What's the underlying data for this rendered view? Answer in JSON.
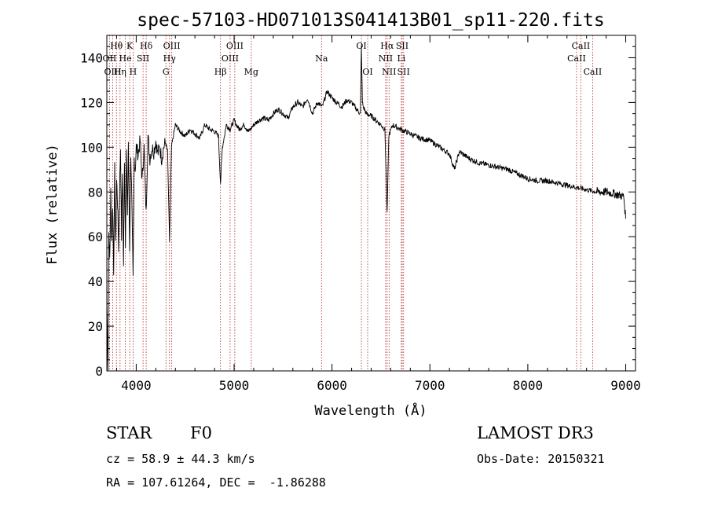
{
  "chart_data": {
    "type": "line",
    "title": "spec-57103-HD071013S041413B01_sp11-220.fits",
    "xlabel": "Wavelength (Å)",
    "ylabel": "Flux (relative)",
    "xlim": [
      3700,
      9100
    ],
    "ylim": [
      0,
      150
    ],
    "xticks": [
      4000,
      5000,
      6000,
      7000,
      8000,
      9000
    ],
    "yticks": [
      0,
      20,
      40,
      60,
      80,
      100,
      120,
      140
    ],
    "line_color": "#000000",
    "marker_color": "#b22222",
    "series": [
      {
        "name": "spectrum",
        "x": [
          3700,
          3712,
          3720,
          3730,
          3740,
          3750,
          3760,
          3770,
          3780,
          3790,
          3800,
          3810,
          3820,
          3830,
          3840,
          3850,
          3860,
          3870,
          3880,
          3890,
          3900,
          3910,
          3920,
          3933,
          3945,
          3955,
          3968,
          3980,
          3990,
          4000,
          4020,
          4040,
          4060,
          4080,
          4101,
          4120,
          4140,
          4160,
          4180,
          4200,
          4220,
          4240,
          4260,
          4280,
          4300,
          4320,
          4340,
          4360,
          4380,
          4400,
          4450,
          4500,
          4550,
          4600,
          4650,
          4700,
          4750,
          4800,
          4840,
          4861,
          4880,
          4920,
          4960,
          5000,
          5050,
          5100,
          5150,
          5200,
          5250,
          5300,
          5350,
          5400,
          5450,
          5500,
          5550,
          5600,
          5650,
          5700,
          5750,
          5800,
          5850,
          5900,
          5950,
          6000,
          6050,
          6100,
          6150,
          6200,
          6250,
          6290,
          6300,
          6310,
          6320,
          6350,
          6400,
          6450,
          6500,
          6540,
          6563,
          6580,
          6620,
          6700,
          6800,
          6900,
          7000,
          7100,
          7200,
          7250,
          7300,
          7400,
          7500,
          7600,
          7700,
          7800,
          7900,
          8000,
          8100,
          8200,
          8300,
          8400,
          8500,
          8600,
          8700,
          8800,
          8900,
          8980,
          9000
        ],
        "y": [
          30,
          2,
          62,
          50,
          80,
          58,
          75,
          45,
          90,
          55,
          85,
          75,
          55,
          80,
          100,
          60,
          90,
          45,
          95,
          58,
          98,
          70,
          100,
          55,
          98,
          75,
          40,
          95,
          90,
          100,
          97,
          103,
          85,
          100,
          70,
          105,
          95,
          100,
          98,
          103,
          97,
          100,
          95,
          100,
          102,
          98,
          58,
          100,
          105,
          110,
          107,
          105,
          108,
          106,
          104,
          110,
          108,
          107,
          105,
          84,
          100,
          110,
          108,
          112,
          108,
          110,
          107,
          110,
          112,
          113,
          112,
          115,
          117,
          115,
          113,
          118,
          120,
          118,
          122,
          115,
          120,
          118,
          125,
          122,
          120,
          118,
          121,
          120,
          117,
          115,
          145,
          120,
          118,
          115,
          114,
          112,
          110,
          108,
          70,
          105,
          110,
          108,
          106,
          104,
          103,
          100,
          97,
          90,
          98,
          95,
          93,
          92,
          91,
          90,
          88,
          86,
          85,
          85,
          84,
          83,
          82,
          81,
          80,
          80,
          79,
          78,
          68
        ]
      }
    ],
    "spectral_lines": [
      {
        "label": "Hθ",
        "wavelength": 3798,
        "row": 0
      },
      {
        "label": "K",
        "wavelength": 3934,
        "row": 0
      },
      {
        "label": "Hδ",
        "wavelength": 4102,
        "row": 0
      },
      {
        "label": "OIII",
        "wavelength": 4363,
        "row": 0
      },
      {
        "label": "OIII",
        "wavelength": 5007,
        "row": 0
      },
      {
        "label": "OI",
        "wavelength": 6300,
        "row": 0
      },
      {
        "label": "Hα",
        "wavelength": 6563,
        "row": 0
      },
      {
        "label": "SII",
        "wavelength": 6717,
        "row": 0
      },
      {
        "label": "CaII",
        "wavelength": 8542,
        "row": 0
      },
      {
        "label": "OII",
        "wavelength": 3727,
        "row": 1
      },
      {
        "label": "He",
        "wavelength": 3889,
        "row": 1
      },
      {
        "label": "SII",
        "wavelength": 4070,
        "row": 1
      },
      {
        "label": "Hγ",
        "wavelength": 4340,
        "row": 1
      },
      {
        "label": "OIII",
        "wavelength": 4959,
        "row": 1
      },
      {
        "label": "Na",
        "wavelength": 5893,
        "row": 1
      },
      {
        "label": "NII",
        "wavelength": 6548,
        "row": 1
      },
      {
        "label": "Li",
        "wavelength": 6708,
        "row": 1
      },
      {
        "label": "CaII",
        "wavelength": 8498,
        "row": 1
      },
      {
        "label": "OIII",
        "wavelength": 3760,
        "row": 2
      },
      {
        "label": "Hη",
        "wavelength": 3835,
        "row": 2
      },
      {
        "label": "H",
        "wavelength": 3968,
        "row": 2
      },
      {
        "label": "G",
        "wavelength": 4304,
        "row": 2
      },
      {
        "label": "Hβ",
        "wavelength": 4861,
        "row": 2
      },
      {
        "label": "Mg",
        "wavelength": 5175,
        "row": 2
      },
      {
        "label": "OI",
        "wavelength": 6364,
        "row": 2
      },
      {
        "label": "NII",
        "wavelength": 6583,
        "row": 2
      },
      {
        "label": "SII",
        "wavelength": 6731,
        "row": 2
      },
      {
        "label": "CaII",
        "wavelength": 8662,
        "row": 2
      }
    ]
  },
  "info": {
    "object_class": "STAR",
    "subclass": "F0",
    "survey": "LAMOST DR3",
    "cz": "cz = 58.9 ± 44.3 km/s",
    "obs_date": "Obs-Date: 20150321",
    "coords": "RA = 107.61264, DEC =  -1.86288"
  }
}
